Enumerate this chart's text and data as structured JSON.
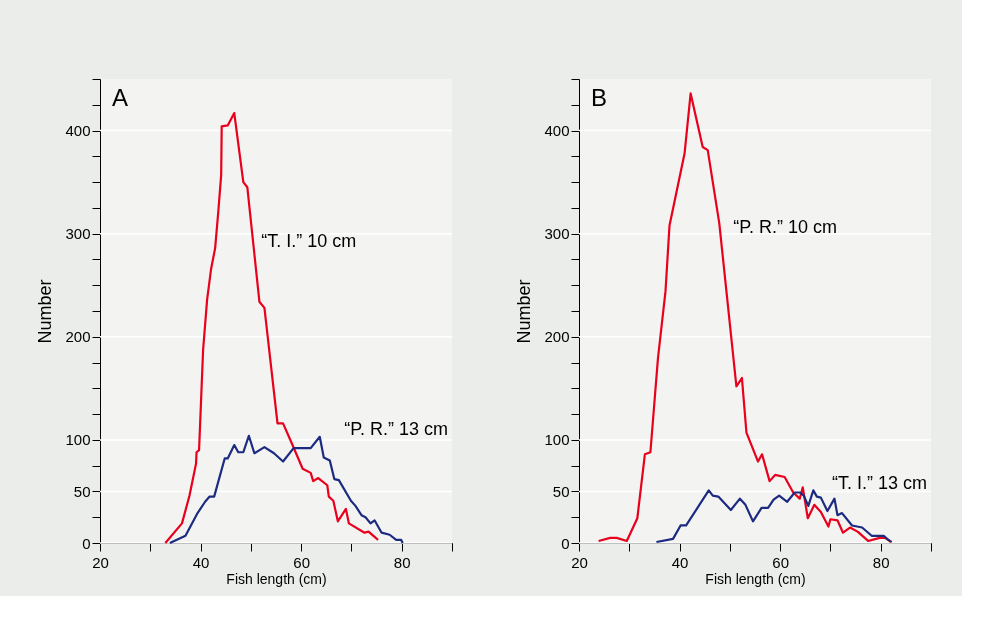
{
  "chart_data": [
    {
      "type": "line",
      "title": "A",
      "xlabel": "Fish length (cm)",
      "ylabel": "Number",
      "xlim": [
        20,
        90
      ],
      "ylim": [
        0,
        450
      ],
      "xticks": [
        20,
        {
          "value": 30,
          "label": null
        },
        40,
        {
          "value": 50,
          "label": null
        },
        60,
        {
          "value": 70,
          "label": null
        },
        80,
        {
          "value": 90,
          "label": null
        }
      ],
      "yticks": [
        0,
        {
          "value": 25,
          "label": null
        },
        50,
        {
          "value": 75,
          "label": null
        },
        100,
        {
          "value": 125,
          "label": null
        },
        {
          "value": 150,
          "label": null
        },
        {
          "value": 175,
          "label": null
        },
        200,
        {
          "value": 225,
          "label": null
        },
        {
          "value": 250,
          "label": null
        },
        {
          "value": 275,
          "label": null
        },
        300,
        {
          "value": 325,
          "label": null
        },
        {
          "value": 350,
          "label": null
        },
        {
          "value": 375,
          "label": null
        },
        400,
        {
          "value": 425,
          "label": null
        },
        {
          "value": 450,
          "label": null
        }
      ],
      "grid": "y",
      "legend": false,
      "series": [
        {
          "name": "“T. I.” 10 cm",
          "color": "#e8001c",
          "x": [
            33,
            36.3,
            37.8,
            39.1,
            39.2,
            39.7,
            40.5,
            41.3,
            42.1,
            42.9,
            43.5,
            44.1,
            44.2,
            45.4,
            46.7,
            48.5,
            49.3,
            51.7,
            52.7,
            55.3,
            56.4,
            58.2,
            60.3,
            61.9,
            62.4,
            63.4,
            65.2,
            65.5,
            66.4,
            67.3,
            68.9,
            69.5,
            72.6,
            73.4,
            75.3
          ],
          "values": [
            0,
            19,
            46,
            77,
            88,
            90,
            187,
            236,
            266,
            286,
            320,
            357,
            404,
            405,
            417,
            350,
            345,
            234,
            228,
            116,
            116,
            96,
            72,
            68,
            60,
            63,
            56,
            45,
            41,
            21,
            33,
            19,
            10,
            11,
            3
          ]
        },
        {
          "name": "“P. R.” 13 cm",
          "color": "#1c2a80",
          "x": [
            33.9,
            37,
            39.4,
            40.9,
            41.8,
            42.7,
            44.8,
            45.4,
            46.7,
            47.5,
            48.5,
            49.6,
            50.7,
            52.7,
            54.6,
            56.4,
            58.5,
            61.9,
            63.7,
            64.5,
            65.7,
            66.6,
            67.5,
            69.9,
            70.8,
            72,
            72.8,
            73.8,
            74.6,
            76,
            77.6,
            78.9,
            79.9,
            80.2
          ],
          "values": [
            0,
            7,
            29,
            40,
            45,
            45,
            82,
            82,
            95,
            88,
            88,
            104,
            87,
            93,
            87,
            79,
            92,
            92,
            103,
            83,
            80,
            62,
            61,
            41,
            36,
            27,
            25,
            19,
            22,
            10,
            8,
            3,
            3,
            0
          ]
        }
      ]
    },
    {
      "type": "line",
      "title": "B",
      "xlabel": "Fish length (cm)",
      "ylabel": "Number",
      "xlim": [
        20,
        90
      ],
      "ylim": [
        0,
        450
      ],
      "xticks": [
        20,
        {
          "value": 30,
          "label": null
        },
        40,
        {
          "value": 50,
          "label": null
        },
        60,
        {
          "value": 70,
          "label": null
        },
        80,
        {
          "value": 90,
          "label": null
        }
      ],
      "yticks": [
        0,
        {
          "value": 25,
          "label": null
        },
        50,
        {
          "value": 75,
          "label": null
        },
        100,
        {
          "value": 125,
          "label": null
        },
        {
          "value": 150,
          "label": null
        },
        {
          "value": 175,
          "label": null
        },
        200,
        {
          "value": 225,
          "label": null
        },
        {
          "value": 250,
          "label": null
        },
        {
          "value": 275,
          "label": null
        },
        300,
        {
          "value": 325,
          "label": null
        },
        {
          "value": 350,
          "label": null
        },
        {
          "value": 375,
          "label": null
        },
        400,
        {
          "value": 425,
          "label": null
        },
        {
          "value": 450,
          "label": null
        }
      ],
      "grid": "y",
      "legend": false,
      "series": [
        {
          "name": "“P. R.” 10 cm",
          "color": "#e8001c",
          "x": [
            23.9,
            26.2,
            27.5,
            29.5,
            31.6,
            33.1,
            34.2,
            35.7,
            37.2,
            38,
            41,
            42.2,
            44.6,
            45.6,
            47.9,
            51.3,
            52.4,
            53.3,
            55.6,
            56.4,
            57.9,
            59,
            60.9,
            62.6,
            63.9,
            64.5,
            65.5,
            66.8,
            68.1,
            69.6,
            70,
            71.4,
            72.5,
            73.9,
            75.4,
            77.5,
            79.8,
            80.8,
            82.2
          ],
          "values": [
            2,
            5,
            5,
            2,
            24,
            86,
            88,
            179,
            244,
            308,
            378,
            436,
            384,
            381,
            310,
            152,
            160,
            107,
            79,
            86,
            60,
            66,
            64,
            49,
            43,
            54,
            24,
            37,
            30,
            16,
            23,
            22,
            10,
            15,
            11,
            2,
            5,
            5,
            1
          ]
        },
        {
          "name": "“T. I.” 13 cm",
          "color": "#1c2a80",
          "x": [
            35.4,
            38.7,
            40.2,
            41.3,
            45.8,
            46.6,
            47.7,
            50.2,
            52,
            53.1,
            54.6,
            56.3,
            57.6,
            58.7,
            59.8,
            61.4,
            62.9,
            63.9,
            64.7,
            65.6,
            66.6,
            67.3,
            68.1,
            69.4,
            70.8,
            71.4,
            72.3,
            74.3,
            76.3,
            78.2,
            80.6,
            82
          ],
          "values": [
            1,
            4,
            17,
            17,
            51,
            46,
            45,
            32,
            43,
            37,
            21,
            34,
            34,
            42,
            46,
            40,
            49,
            49,
            46,
            36,
            51,
            45,
            44,
            31,
            43,
            27,
            29,
            17,
            15,
            7,
            7,
            1
          ]
        }
      ]
    }
  ]
}
